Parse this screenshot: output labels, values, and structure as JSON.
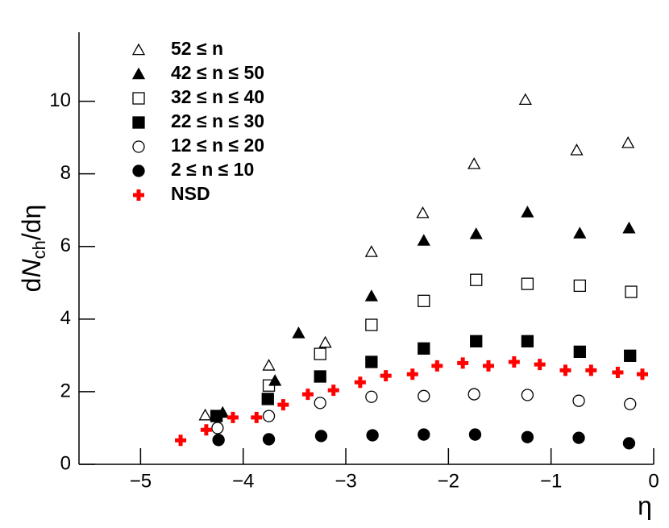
{
  "chart_data": {
    "type": "scatter",
    "ylabel": [
      "d",
      "N",
      "ch",
      "/dη"
    ],
    "xlabel": "η",
    "xlim": [
      -5.6,
      0
    ],
    "ylim": [
      0,
      11.9
    ],
    "xticks": [
      {
        "value": -5,
        "label": "−5"
      },
      {
        "value": -4,
        "label": "−4"
      },
      {
        "value": -3,
        "label": "−3"
      },
      {
        "value": -2,
        "label": "−2"
      },
      {
        "value": -1,
        "label": "−1"
      },
      0
    ],
    "yticks": [
      0,
      2,
      4,
      6,
      8,
      10
    ],
    "grid": false,
    "legend": "upper left",
    "series": [
      {
        "name": "52 ≤ n",
        "color": "#000000",
        "marker": "triangle-open",
        "x": [
          -4.37,
          -3.75,
          -3.2,
          -2.75,
          -2.25,
          -1.75,
          -1.25,
          -0.75,
          -0.25
        ],
        "values": [
          1.35,
          2.72,
          3.35,
          5.85,
          6.92,
          8.27,
          10.04,
          8.65,
          8.85
        ]
      },
      {
        "name": "42 ≤ n ≤ 50",
        "color": "#000000",
        "marker": "triangle",
        "x": [
          -4.2,
          -3.69,
          -3.46,
          -2.75,
          -2.24,
          -1.73,
          -1.23,
          -0.72,
          -0.24
        ],
        "values": [
          1.42,
          2.3,
          3.61,
          4.63,
          6.16,
          6.34,
          6.94,
          6.36,
          6.5
        ]
      },
      {
        "name": "32 ≤ n ≤ 40",
        "color": "#000000",
        "marker": "square-open",
        "x": [
          -3.75,
          -3.25,
          -2.75,
          -2.24,
          -1.73,
          -1.23,
          -0.72,
          -0.22
        ],
        "values": [
          2.17,
          3.04,
          3.84,
          4.5,
          5.08,
          4.97,
          4.92,
          4.75
        ]
      },
      {
        "name": "22 ≤ n ≤ 30",
        "color": "#000000",
        "marker": "square",
        "x": [
          -4.26,
          -3.76,
          -3.25,
          -2.75,
          -2.24,
          -1.73,
          -1.23,
          -0.72,
          -0.23
        ],
        "values": [
          1.33,
          1.8,
          2.42,
          2.82,
          3.19,
          3.39,
          3.39,
          3.1,
          2.99
        ]
      },
      {
        "name": "12 ≤ n ≤ 20",
        "color": "#000000",
        "marker": "circle-open",
        "x": [
          -4.25,
          -3.75,
          -3.25,
          -2.75,
          -2.24,
          -1.75,
          -1.23,
          -0.73,
          -0.23
        ],
        "values": [
          1.0,
          1.33,
          1.69,
          1.86,
          1.88,
          1.93,
          1.91,
          1.75,
          1.66
        ]
      },
      {
        "name": "2 ≤ n ≤ 10",
        "color": "#000000",
        "marker": "circle",
        "x": [
          -4.24,
          -3.75,
          -3.24,
          -2.74,
          -2.24,
          -1.74,
          -1.23,
          -0.73,
          -0.24
        ],
        "values": [
          0.67,
          0.69,
          0.78,
          0.8,
          0.82,
          0.82,
          0.75,
          0.73,
          0.58
        ]
      },
      {
        "name": "NSD",
        "color": "#ff0000",
        "marker": "cross",
        "x": [
          -4.61,
          -4.36,
          -4.1,
          -3.87,
          -3.61,
          -3.37,
          -3.12,
          -2.86,
          -2.61,
          -2.35,
          -2.11,
          -1.86,
          -1.61,
          -1.36,
          -1.11,
          -0.86,
          -0.61,
          -0.35,
          -0.11
        ],
        "values": [
          0.66,
          0.95,
          1.29,
          1.29,
          1.64,
          1.93,
          2.04,
          2.26,
          2.44,
          2.48,
          2.71,
          2.79,
          2.71,
          2.82,
          2.75,
          2.59,
          2.59,
          2.53,
          2.48
        ]
      }
    ]
  }
}
